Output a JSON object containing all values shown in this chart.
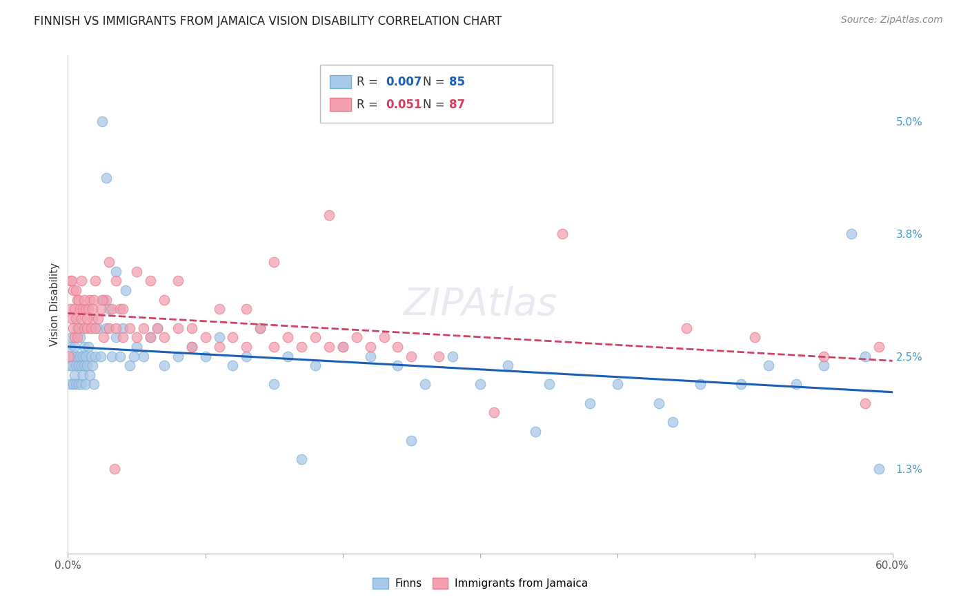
{
  "title": "FINNISH VS IMMIGRANTS FROM JAMAICA VISION DISABILITY CORRELATION CHART",
  "source": "Source: ZipAtlas.com",
  "ylabel": "Vision Disability",
  "ytick_labels": [
    "5.0%",
    "3.8%",
    "2.5%",
    "1.3%"
  ],
  "ytick_values": [
    0.05,
    0.038,
    0.025,
    0.013
  ],
  "xmin": 0.0,
  "xmax": 0.6,
  "ymin": 0.004,
  "ymax": 0.057,
  "blue_color": "#a8c8e8",
  "pink_color": "#f4a0b0",
  "blue_edge": "#7aafd4",
  "pink_edge": "#e87890",
  "trendline_blue_color": "#1a5fb4",
  "trendline_pink_color": "#d04060",
  "grid_color": "#cccccc",
  "background_color": "#ffffff",
  "watermark": "ZIPAtlas",
  "finns_x": [
    0.001,
    0.002,
    0.002,
    0.003,
    0.003,
    0.004,
    0.004,
    0.005,
    0.005,
    0.006,
    0.006,
    0.007,
    0.007,
    0.008,
    0.008,
    0.009,
    0.009,
    0.01,
    0.01,
    0.011,
    0.011,
    0.012,
    0.012,
    0.013,
    0.013,
    0.014,
    0.015,
    0.016,
    0.017,
    0.018,
    0.019,
    0.02,
    0.022,
    0.024,
    0.026,
    0.028,
    0.03,
    0.032,
    0.035,
    0.038,
    0.04,
    0.045,
    0.05,
    0.055,
    0.06,
    0.065,
    0.07,
    0.08,
    0.09,
    0.1,
    0.11,
    0.12,
    0.13,
    0.14,
    0.15,
    0.16,
    0.18,
    0.2,
    0.22,
    0.24,
    0.26,
    0.28,
    0.3,
    0.32,
    0.35,
    0.38,
    0.4,
    0.43,
    0.46,
    0.49,
    0.51,
    0.53,
    0.55,
    0.57,
    0.58,
    0.59,
    0.34,
    0.44,
    0.25,
    0.17,
    0.028,
    0.035,
    0.042,
    0.048,
    0.025
  ],
  "finns_y": [
    0.024,
    0.022,
    0.026,
    0.024,
    0.027,
    0.022,
    0.025,
    0.023,
    0.026,
    0.024,
    0.022,
    0.025,
    0.028,
    0.024,
    0.022,
    0.025,
    0.027,
    0.024,
    0.022,
    0.025,
    0.023,
    0.026,
    0.024,
    0.022,
    0.025,
    0.024,
    0.026,
    0.023,
    0.025,
    0.024,
    0.022,
    0.025,
    0.028,
    0.025,
    0.031,
    0.028,
    0.03,
    0.025,
    0.027,
    0.025,
    0.028,
    0.024,
    0.026,
    0.025,
    0.027,
    0.028,
    0.024,
    0.025,
    0.026,
    0.025,
    0.027,
    0.024,
    0.025,
    0.028,
    0.022,
    0.025,
    0.024,
    0.026,
    0.025,
    0.024,
    0.022,
    0.025,
    0.022,
    0.024,
    0.022,
    0.02,
    0.022,
    0.02,
    0.022,
    0.022,
    0.024,
    0.022,
    0.024,
    0.038,
    0.025,
    0.013,
    0.017,
    0.018,
    0.016,
    0.014,
    0.044,
    0.034,
    0.032,
    0.025,
    0.05
  ],
  "jamaica_x": [
    0.001,
    0.002,
    0.002,
    0.003,
    0.003,
    0.004,
    0.004,
    0.005,
    0.005,
    0.006,
    0.006,
    0.007,
    0.007,
    0.008,
    0.008,
    0.009,
    0.01,
    0.011,
    0.012,
    0.013,
    0.014,
    0.015,
    0.016,
    0.017,
    0.018,
    0.019,
    0.02,
    0.022,
    0.024,
    0.026,
    0.028,
    0.03,
    0.032,
    0.035,
    0.038,
    0.04,
    0.045,
    0.05,
    0.055,
    0.06,
    0.065,
    0.07,
    0.08,
    0.09,
    0.1,
    0.11,
    0.12,
    0.13,
    0.14,
    0.15,
    0.16,
    0.17,
    0.18,
    0.19,
    0.2,
    0.21,
    0.22,
    0.23,
    0.24,
    0.25,
    0.01,
    0.012,
    0.014,
    0.018,
    0.02,
    0.025,
    0.03,
    0.035,
    0.04,
    0.05,
    0.06,
    0.07,
    0.08,
    0.09,
    0.11,
    0.13,
    0.15,
    0.27,
    0.36,
    0.45,
    0.5,
    0.55,
    0.59,
    0.19,
    0.31,
    0.58,
    0.034
  ],
  "jamaica_y": [
    0.025,
    0.03,
    0.033,
    0.029,
    0.033,
    0.028,
    0.032,
    0.027,
    0.03,
    0.029,
    0.032,
    0.027,
    0.031,
    0.028,
    0.031,
    0.03,
    0.029,
    0.03,
    0.028,
    0.03,
    0.028,
    0.03,
    0.031,
    0.028,
    0.029,
    0.031,
    0.028,
    0.029,
    0.03,
    0.027,
    0.031,
    0.028,
    0.03,
    0.028,
    0.03,
    0.027,
    0.028,
    0.027,
    0.028,
    0.027,
    0.028,
    0.027,
    0.028,
    0.026,
    0.027,
    0.026,
    0.027,
    0.026,
    0.028,
    0.026,
    0.027,
    0.026,
    0.027,
    0.026,
    0.026,
    0.027,
    0.026,
    0.027,
    0.026,
    0.025,
    0.033,
    0.031,
    0.029,
    0.03,
    0.033,
    0.031,
    0.035,
    0.033,
    0.03,
    0.034,
    0.033,
    0.031,
    0.033,
    0.028,
    0.03,
    0.03,
    0.035,
    0.025,
    0.038,
    0.028,
    0.027,
    0.025,
    0.026,
    0.04,
    0.019,
    0.02,
    0.013
  ],
  "title_fontsize": 12,
  "source_fontsize": 10,
  "axis_label_fontsize": 11,
  "tick_fontsize": 11,
  "legend_fontsize": 12,
  "watermark_fontsize": 40
}
